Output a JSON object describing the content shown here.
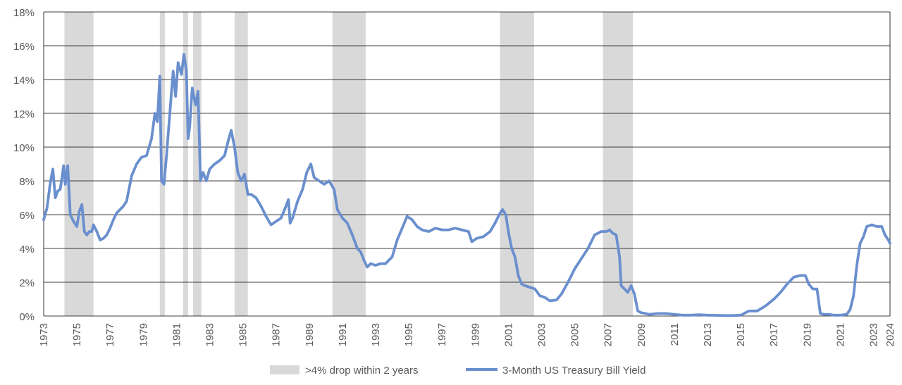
{
  "colors": {
    "line": "#6a8fce",
    "shade": "#d9d9d9",
    "grid": "#000000",
    "text": "#595959"
  },
  "chart_data": {
    "type": "line",
    "title": "",
    "xlabel": "",
    "ylabel": "",
    "xlim": [
      1973,
      2024
    ],
    "ylim": [
      0,
      18
    ],
    "y_ticks": [
      0,
      2,
      4,
      6,
      8,
      10,
      12,
      14,
      16,
      18
    ],
    "y_tick_labels": [
      "0%",
      "2%",
      "4%",
      "6%",
      "8%",
      "10%",
      "12%",
      "14%",
      "16%",
      "18%"
    ],
    "x_ticks": [
      1973,
      1975,
      1977,
      1979,
      1981,
      1983,
      1985,
      1987,
      1989,
      1991,
      1993,
      1995,
      1997,
      1999,
      2001,
      2003,
      2005,
      2007,
      2009,
      2011,
      2013,
      2015,
      2017,
      2019,
      2021,
      2023,
      2024
    ],
    "x_tick_labels": [
      "1973",
      "1975",
      "1977",
      "1979",
      "1981",
      "1983",
      "1985",
      "1987",
      "1989",
      "1991",
      "1993",
      "1995",
      "1997",
      "1999",
      "2001",
      "2003",
      "2005",
      "2007",
      "2009",
      "2011",
      "2013",
      "2015",
      "2017",
      "2019",
      "2021",
      "2023",
      "2024"
    ],
    "legend": {
      "position": "bottom",
      "shade_label": ">4% drop within 2 years",
      "line_label": "3-Month US Treasury Bill Yield"
    },
    "shaded_periods": [
      {
        "start": 1974.25,
        "end": 1976.0
      },
      {
        "start": 1980.0,
        "end": 1980.3
      },
      {
        "start": 1981.4,
        "end": 1981.7
      },
      {
        "start": 1982.0,
        "end": 1982.5
      },
      {
        "start": 1984.5,
        "end": 1985.3
      },
      {
        "start": 1990.4,
        "end": 1992.4
      },
      {
        "start": 2000.5,
        "end": 2002.55
      },
      {
        "start": 2006.7,
        "end": 2008.5
      }
    ],
    "series": [
      {
        "name": "3-Month US Treasury Bill Yield",
        "x": [
          1973.0,
          1973.2,
          1973.4,
          1973.55,
          1973.7,
          1973.85,
          1974.0,
          1974.2,
          1974.3,
          1974.45,
          1974.6,
          1974.8,
          1975.0,
          1975.15,
          1975.3,
          1975.45,
          1975.6,
          1975.75,
          1975.9,
          1976.0,
          1976.2,
          1976.4,
          1976.6,
          1976.8,
          1977.0,
          1977.2,
          1977.4,
          1977.6,
          1977.8,
          1978.0,
          1978.3,
          1978.6,
          1978.9,
          1979.2,
          1979.5,
          1979.7,
          1979.85,
          1980.0,
          1980.1,
          1980.25,
          1980.4,
          1980.6,
          1980.8,
          1980.95,
          1981.1,
          1981.3,
          1981.45,
          1981.6,
          1981.7,
          1981.8,
          1981.95,
          1982.05,
          1982.15,
          1982.3,
          1982.45,
          1982.6,
          1982.8,
          1983.0,
          1983.3,
          1983.6,
          1983.9,
          1984.1,
          1984.3,
          1984.5,
          1984.7,
          1984.9,
          1985.1,
          1985.3,
          1985.5,
          1985.8,
          1986.1,
          1986.4,
          1986.7,
          1987.0,
          1987.3,
          1987.6,
          1987.75,
          1987.85,
          1988.0,
          1988.3,
          1988.6,
          1988.85,
          1989.1,
          1989.3,
          1989.6,
          1989.9,
          1990.2,
          1990.5,
          1990.7,
          1991.0,
          1991.3,
          1991.6,
          1991.9,
          1992.1,
          1992.3,
          1992.5,
          1992.7,
          1993.0,
          1993.3,
          1993.6,
          1994.0,
          1994.3,
          1994.6,
          1994.9,
          1995.2,
          1995.5,
          1995.8,
          1996.2,
          1996.6,
          1997.0,
          1997.4,
          1997.8,
          1998.2,
          1998.6,
          1998.8,
          1999.1,
          1999.5,
          1999.9,
          2000.2,
          2000.45,
          2000.65,
          2000.85,
          2001.0,
          2001.2,
          2001.4,
          2001.6,
          2001.8,
          2002.0,
          2002.3,
          2002.6,
          2002.9,
          2003.2,
          2003.5,
          2003.9,
          2004.2,
          2004.6,
          2005.0,
          2005.4,
          2005.8,
          2006.2,
          2006.6,
          2006.9,
          2007.1,
          2007.3,
          2007.5,
          2007.7,
          2007.8,
          2008.0,
          2008.2,
          2008.4,
          2008.6,
          2008.8,
          2009.0,
          2009.5,
          2010.0,
          2010.5,
          2011.0,
          2011.5,
          2012.0,
          2012.5,
          2013.0,
          2013.5,
          2014.0,
          2014.5,
          2015.0,
          2015.5,
          2016.0,
          2016.5,
          2017.0,
          2017.4,
          2017.8,
          2018.2,
          2018.6,
          2018.9,
          2019.1,
          2019.35,
          2019.6,
          2019.8,
          2020.0,
          2020.3,
          2020.6,
          2021.0,
          2021.4,
          2021.6,
          2021.8,
          2022.0,
          2022.2,
          2022.4,
          2022.6,
          2022.9,
          2023.2,
          2023.5,
          2023.7,
          2023.9,
          2024.0
        ],
        "values": [
          5.7,
          6.4,
          7.9,
          8.7,
          7.0,
          7.4,
          7.5,
          8.9,
          7.8,
          8.9,
          6.0,
          5.6,
          5.3,
          6.2,
          6.6,
          5.0,
          4.8,
          5.0,
          5.0,
          5.4,
          5.0,
          4.5,
          4.6,
          4.8,
          5.2,
          5.7,
          6.1,
          6.3,
          6.5,
          6.8,
          8.3,
          9.0,
          9.4,
          9.5,
          10.5,
          12.0,
          11.5,
          14.2,
          8.0,
          7.8,
          9.5,
          12.0,
          14.5,
          13.0,
          15.0,
          14.3,
          15.5,
          14.5,
          10.5,
          11.2,
          13.5,
          13.0,
          12.5,
          13.3,
          8.0,
          8.5,
          8.0,
          8.7,
          9.0,
          9.2,
          9.5,
          10.3,
          11.0,
          10.0,
          8.5,
          8.0,
          8.4,
          7.2,
          7.2,
          7.0,
          6.5,
          5.9,
          5.4,
          5.6,
          5.8,
          6.5,
          6.9,
          5.5,
          5.8,
          6.8,
          7.5,
          8.5,
          9.0,
          8.2,
          8.0,
          7.8,
          8.0,
          7.5,
          6.3,
          5.8,
          5.5,
          4.8,
          4.0,
          3.8,
          3.3,
          2.9,
          3.1,
          3.0,
          3.1,
          3.1,
          3.5,
          4.5,
          5.2,
          5.9,
          5.7,
          5.3,
          5.1,
          5.0,
          5.2,
          5.1,
          5.1,
          5.2,
          5.1,
          5.0,
          4.4,
          4.6,
          4.7,
          5.0,
          5.5,
          6.0,
          6.3,
          6.0,
          5.0,
          4.0,
          3.5,
          2.4,
          1.9,
          1.8,
          1.7,
          1.6,
          1.2,
          1.1,
          0.9,
          0.95,
          1.3,
          2.0,
          2.8,
          3.4,
          4.0,
          4.8,
          5.0,
          5.0,
          5.1,
          4.9,
          4.8,
          3.5,
          1.8,
          1.6,
          1.4,
          1.8,
          1.3,
          0.3,
          0.2,
          0.1,
          0.15,
          0.15,
          0.1,
          0.05,
          0.05,
          0.08,
          0.05,
          0.04,
          0.03,
          0.03,
          0.05,
          0.3,
          0.3,
          0.6,
          1.0,
          1.4,
          1.9,
          2.3,
          2.4,
          2.4,
          1.9,
          1.6,
          1.6,
          0.15,
          0.1,
          0.1,
          0.05,
          0.05,
          0.1,
          0.4,
          1.2,
          3.0,
          4.3,
          4.7,
          5.3,
          5.4,
          5.3,
          5.3,
          4.8,
          4.5,
          4.3
        ]
      }
    ]
  }
}
